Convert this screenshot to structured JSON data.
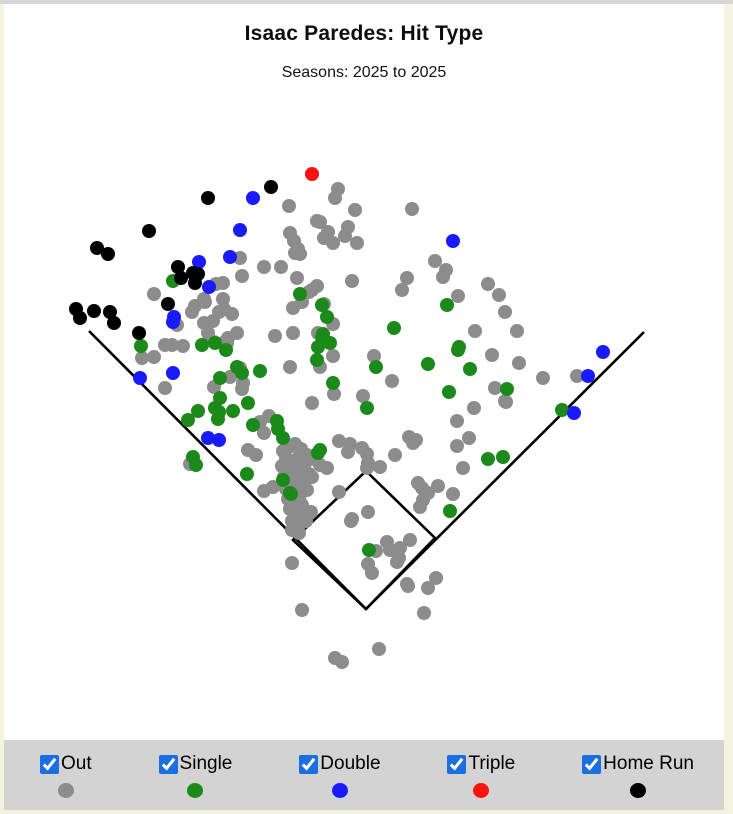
{
  "header": {
    "title": "Isaac Paredes: Hit Type",
    "subtitle": "Seasons: 2025 to 2025"
  },
  "legend": {
    "bar_background": "#d3d3d3",
    "checkbox_color": "#1b6fe0",
    "items": [
      {
        "label": "Out",
        "color": "#8c8c8c",
        "checked": true
      },
      {
        "label": "Single",
        "color": "#1b8a1b",
        "checked": true
      },
      {
        "label": "Double",
        "color": "#1a1aff",
        "checked": true
      },
      {
        "label": "Triple",
        "color": "#ff1111",
        "checked": true
      },
      {
        "label": "Home Run",
        "color": "#000000",
        "checked": true
      }
    ]
  },
  "chart_data": {
    "type": "scatter",
    "title": "Isaac Paredes: Hit Type",
    "subtitle": "Seasons: 2025 to 2025",
    "description": "Baseball spray chart; points are batted-ball landing locations in page pixel coordinates, colored by hit type.",
    "plot_background": "#ffffff",
    "point_radius": 7,
    "field_lines": {
      "color": "#000000",
      "width": 2.6,
      "home": [
        366,
        609
      ],
      "foul_left_end": [
        89,
        331
      ],
      "foul_right_end": [
        644,
        332
      ],
      "square": [
        [
          366,
          609
        ],
        [
          293,
          540
        ],
        [
          366,
          471
        ],
        [
          435,
          538
        ]
      ]
    },
    "series": [
      {
        "name": "Out",
        "color": "#8c8c8c",
        "points": [
          [
            338,
            189
          ],
          [
            335,
            198
          ],
          [
            289,
            206
          ],
          [
            355,
            210
          ],
          [
            412,
            209
          ],
          [
            317,
            221
          ],
          [
            320,
            222
          ],
          [
            328,
            232
          ],
          [
            348,
            227
          ],
          [
            345,
            236
          ],
          [
            324,
            238
          ],
          [
            333,
            243
          ],
          [
            357,
            243
          ],
          [
            290,
            233
          ],
          [
            294,
            241
          ],
          [
            298,
            249
          ],
          [
            300,
            254
          ],
          [
            240,
            258
          ],
          [
            295,
            253
          ],
          [
            435,
            261
          ],
          [
            446,
            270
          ],
          [
            264,
            267
          ],
          [
            281,
            267
          ],
          [
            242,
            276
          ],
          [
            216,
            284
          ],
          [
            223,
            283
          ],
          [
            297,
            278
          ],
          [
            309,
            292
          ],
          [
            317,
            286
          ],
          [
            443,
            277
          ],
          [
            352,
            281
          ],
          [
            407,
            278
          ],
          [
            402,
            290
          ],
          [
            488,
            284
          ],
          [
            499,
            295
          ],
          [
            458,
            296
          ],
          [
            154,
            294
          ],
          [
            204,
            299
          ],
          [
            195,
            306
          ],
          [
            312,
            290
          ],
          [
            302,
            302
          ],
          [
            293,
            308
          ],
          [
            224,
            309
          ],
          [
            223,
            299
          ],
          [
            205,
            302
          ],
          [
            232,
            314
          ],
          [
            213,
            321
          ],
          [
            204,
            323
          ],
          [
            177,
            325
          ],
          [
            192,
            312
          ],
          [
            219,
            312
          ],
          [
            208,
            333
          ],
          [
            237,
            333
          ],
          [
            275,
            336
          ],
          [
            293,
            333
          ],
          [
            318,
            333
          ],
          [
            227,
            343
          ],
          [
            505,
            312
          ],
          [
            324,
            304
          ],
          [
            333,
            324
          ],
          [
            475,
            331
          ],
          [
            517,
            331
          ],
          [
            172,
            345
          ],
          [
            183,
            346
          ],
          [
            214,
            342
          ],
          [
            223,
            343
          ],
          [
            228,
            338
          ],
          [
            142,
            358
          ],
          [
            154,
            357
          ],
          [
            165,
            345
          ],
          [
            333,
            356
          ],
          [
            374,
            356
          ],
          [
            320,
            367
          ],
          [
            492,
            355
          ],
          [
            519,
            363
          ],
          [
            543,
            378
          ],
          [
            577,
            376
          ],
          [
            290,
            367
          ],
          [
            312,
            403
          ],
          [
            334,
            394
          ],
          [
            363,
            396
          ],
          [
            392,
            381
          ],
          [
            495,
            388
          ],
          [
            505,
            401
          ],
          [
            474,
            408
          ],
          [
            240,
            368
          ],
          [
            243,
            383
          ],
          [
            242,
            389
          ],
          [
            230,
            377
          ],
          [
            214,
            387
          ],
          [
            165,
            388
          ],
          [
            269,
            416
          ],
          [
            260,
            422
          ],
          [
            264,
            433
          ],
          [
            457,
            421
          ],
          [
            506,
            402
          ],
          [
            409,
            437
          ],
          [
            416,
            440
          ],
          [
            469,
            438
          ],
          [
            457,
            446
          ],
          [
            413,
            443
          ],
          [
            395,
            455
          ],
          [
            248,
            450
          ],
          [
            256,
            455
          ],
          [
            190,
            464
          ],
          [
            380,
            467
          ],
          [
            368,
            463
          ],
          [
            320,
            465
          ],
          [
            327,
            468
          ],
          [
            367,
            468
          ],
          [
            463,
            468
          ],
          [
            273,
            487
          ],
          [
            264,
            491
          ],
          [
            287,
            473
          ],
          [
            290,
            480
          ],
          [
            339,
            441
          ],
          [
            350,
            444
          ],
          [
            362,
            448
          ],
          [
            348,
            452
          ],
          [
            367,
            454
          ],
          [
            283,
            451
          ],
          [
            289,
            447
          ],
          [
            295,
            444
          ],
          [
            301,
            449
          ],
          [
            307,
            455
          ],
          [
            286,
            458
          ],
          [
            293,
            461
          ],
          [
            299,
            457
          ],
          [
            305,
            463
          ],
          [
            311,
            459
          ],
          [
            282,
            466
          ],
          [
            289,
            469
          ],
          [
            296,
            472
          ],
          [
            303,
            469
          ],
          [
            309,
            474
          ],
          [
            284,
            477
          ],
          [
            291,
            481
          ],
          [
            298,
            484
          ],
          [
            305,
            481
          ],
          [
            312,
            477
          ],
          [
            286,
            489
          ],
          [
            293,
            492
          ],
          [
            300,
            495
          ],
          [
            307,
            490
          ],
          [
            288,
            499
          ],
          [
            295,
            502
          ],
          [
            302,
            505
          ],
          [
            290,
            509
          ],
          [
            297,
            512
          ],
          [
            304,
            516
          ],
          [
            292,
            521
          ],
          [
            299,
            525
          ],
          [
            306,
            521
          ],
          [
            311,
            512
          ],
          [
            292,
            530
          ],
          [
            299,
            533
          ],
          [
            418,
            483
          ],
          [
            422,
            488
          ],
          [
            428,
            493
          ],
          [
            438,
            486
          ],
          [
            423,
            500
          ],
          [
            420,
            507
          ],
          [
            453,
            494
          ],
          [
            339,
            492
          ],
          [
            352,
            519
          ],
          [
            368,
            512
          ],
          [
            351,
            521
          ],
          [
            387,
            542
          ],
          [
            390,
            550
          ],
          [
            376,
            551
          ],
          [
            400,
            548
          ],
          [
            410,
            540
          ],
          [
            399,
            558
          ],
          [
            368,
            564
          ],
          [
            372,
            573
          ],
          [
            292,
            563
          ],
          [
            397,
            562
          ],
          [
            407,
            584
          ],
          [
            436,
            578
          ],
          [
            428,
            588
          ],
          [
            408,
            586
          ],
          [
            424,
            613
          ],
          [
            302,
            610
          ],
          [
            379,
            649
          ],
          [
            335,
            658
          ],
          [
            342,
            662
          ]
        ]
      },
      {
        "name": "Single",
        "color": "#1b8a1b",
        "points": [
          [
            173,
            281
          ],
          [
            300,
            294
          ],
          [
            322,
            305
          ],
          [
            327,
            317
          ],
          [
            323,
            334
          ],
          [
            322,
            337
          ],
          [
            330,
            343
          ],
          [
            141,
            346
          ],
          [
            202,
            345
          ],
          [
            215,
            343
          ],
          [
            226,
            350
          ],
          [
            318,
            347
          ],
          [
            317,
            360
          ],
          [
            237,
            367
          ],
          [
            242,
            373
          ],
          [
            260,
            371
          ],
          [
            220,
            378
          ],
          [
            376,
            367
          ],
          [
            394,
            328
          ],
          [
            447,
            305
          ],
          [
            459,
            347
          ],
          [
            428,
            364
          ],
          [
            458,
            350
          ],
          [
            470,
            369
          ],
          [
            449,
            392
          ],
          [
            367,
            408
          ],
          [
            220,
            398
          ],
          [
            198,
            411
          ],
          [
            215,
            408
          ],
          [
            219,
            412
          ],
          [
            233,
            411
          ],
          [
            248,
            403
          ],
          [
            218,
            419
          ],
          [
            188,
            420
          ],
          [
            253,
            425
          ],
          [
            277,
            421
          ],
          [
            278,
            429
          ],
          [
            283,
            438
          ],
          [
            193,
            457
          ],
          [
            196,
            465
          ],
          [
            247,
            474
          ],
          [
            291,
            494
          ],
          [
            320,
            450
          ],
          [
            318,
            453
          ],
          [
            283,
            480
          ],
          [
            290,
            493
          ],
          [
            369,
            550
          ],
          [
            450,
            511
          ],
          [
            488,
            459
          ],
          [
            503,
            457
          ],
          [
            507,
            389
          ],
          [
            562,
            410
          ],
          [
            333,
            383
          ]
        ]
      },
      {
        "name": "Double",
        "color": "#1a1aff",
        "points": [
          [
            253,
            198
          ],
          [
            240,
            230
          ],
          [
            453,
            241
          ],
          [
            230,
            257
          ],
          [
            199,
            262
          ],
          [
            209,
            287
          ],
          [
            174,
            317
          ],
          [
            173,
            322
          ],
          [
            173,
            373
          ],
          [
            140,
            378
          ],
          [
            208,
            438
          ],
          [
            219,
            440
          ],
          [
            603,
            352
          ],
          [
            588,
            376
          ],
          [
            574,
            413
          ]
        ]
      },
      {
        "name": "Triple",
        "color": "#ff1111",
        "points": [
          [
            312,
            174
          ]
        ]
      },
      {
        "name": "Home Run",
        "color": "#000000",
        "points": [
          [
            271,
            187
          ],
          [
            208,
            198
          ],
          [
            149,
            231
          ],
          [
            97,
            248
          ],
          [
            108,
            254
          ],
          [
            178,
            267
          ],
          [
            193,
            273
          ],
          [
            198,
            274
          ],
          [
            181,
            278
          ],
          [
            195,
            283
          ],
          [
            168,
            304
          ],
          [
            139,
            333
          ],
          [
            76,
            309
          ],
          [
            94,
            311
          ],
          [
            110,
            312
          ],
          [
            80,
            318
          ],
          [
            114,
            323
          ]
        ]
      }
    ]
  }
}
